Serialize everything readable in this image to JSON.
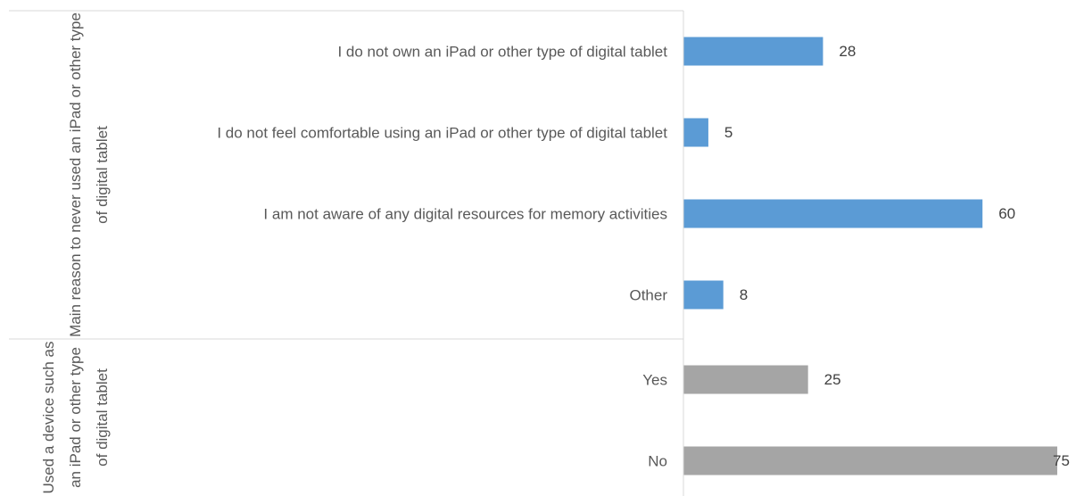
{
  "chart_data": {
    "type": "bar",
    "orientation": "horizontal",
    "groups": [
      {
        "name": "Main reason to never used an iPad or other type of digital tablet",
        "color": "#5b9bd5",
        "categories": [
          "I do not own an iPad or other type of digital tablet",
          "I do not feel comfortable using an iPad or other type of digital tablet",
          "I am not aware of any digital resources for memory activities",
          "Other"
        ],
        "values": [
          28,
          5,
          60,
          8
        ]
      },
      {
        "name": "Used a device such as an iPad or other type of digital tablet",
        "color": "#a5a5a5",
        "categories": [
          "Yes",
          "No"
        ],
        "values": [
          25,
          75
        ]
      }
    ]
  }
}
